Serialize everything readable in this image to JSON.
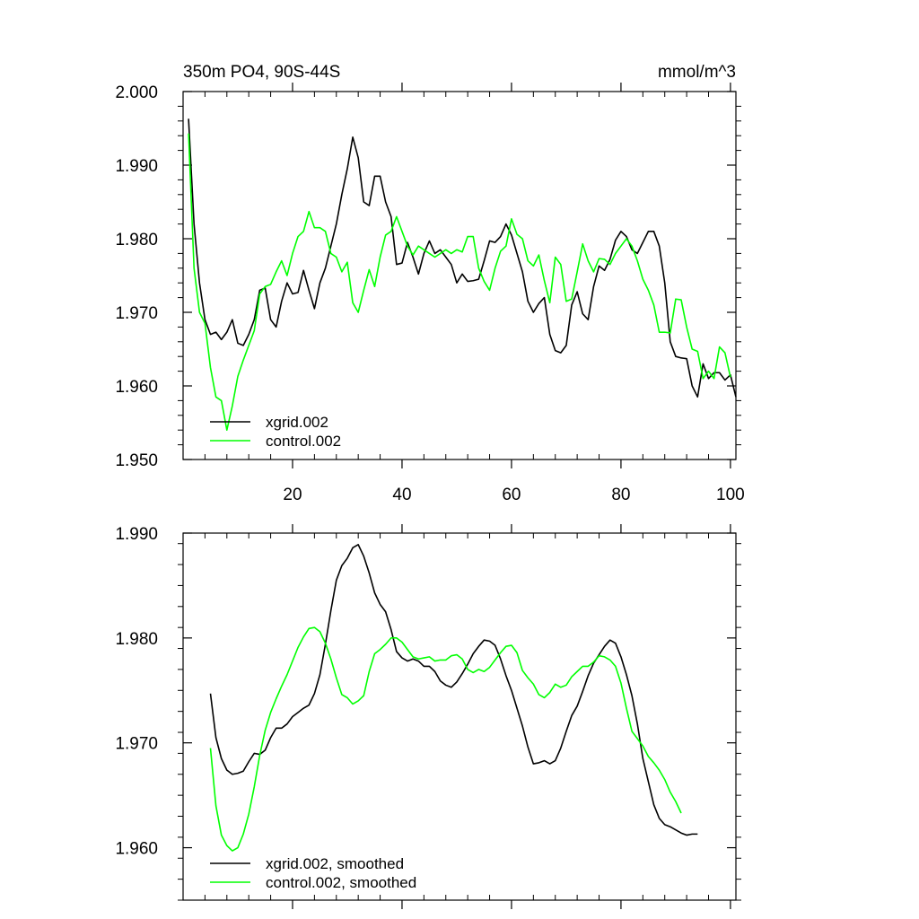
{
  "chart_data": [
    {
      "type": "line",
      "title": "350m PO4, 90S-44S",
      "units": "mmol/m^3",
      "xlim": [
        0,
        101
      ],
      "ylim": [
        1.95,
        2.0
      ],
      "x_ticks": [
        20,
        40,
        60,
        80,
        100
      ],
      "x_tick_labels": [
        "20",
        "40",
        "60",
        "80",
        "100"
      ],
      "y_ticks": [
        1.95,
        1.96,
        1.97,
        1.98,
        1.99,
        2.0
      ],
      "y_tick_labels": [
        "1.950",
        "1.960",
        "1.970",
        "1.980",
        "1.990",
        "2.000"
      ],
      "legend_position": "bottom-left",
      "series": [
        {
          "name": "xgrid.002",
          "color": "#000000",
          "x_start": 1,
          "values": [
            1.9963,
            1.982,
            1.974,
            1.969,
            1.967,
            1.9673,
            1.9663,
            1.9673,
            1.969,
            1.9658,
            1.9655,
            1.967,
            1.969,
            1.973,
            1.9733,
            1.969,
            1.968,
            1.9715,
            1.974,
            1.9725,
            1.9727,
            1.9757,
            1.973,
            1.9705,
            1.974,
            1.976,
            1.979,
            1.982,
            1.986,
            1.9895,
            1.9938,
            1.991,
            1.985,
            1.9845,
            1.9885,
            1.9885,
            1.985,
            1.983,
            1.9765,
            1.9767,
            1.9795,
            1.9775,
            1.9752,
            1.978,
            1.9797,
            1.978,
            1.9785,
            1.9775,
            1.9765,
            1.974,
            1.9752,
            1.9742,
            1.9743,
            1.9745,
            1.977,
            1.9797,
            1.9795,
            1.9803,
            1.982,
            1.9805,
            1.978,
            1.9755,
            1.9715,
            1.97,
            1.9712,
            1.972,
            1.967,
            1.9648,
            1.9645,
            1.9655,
            1.971,
            1.9728,
            1.9698,
            1.969,
            1.9735,
            1.9763,
            1.9757,
            1.9772,
            1.9798,
            1.981,
            1.9803,
            1.9785,
            1.978,
            1.9795,
            1.981,
            1.981,
            1.979,
            1.974,
            1.966,
            1.964,
            1.9638,
            1.9637,
            1.96,
            1.9585,
            1.963,
            1.961,
            1.9618,
            1.9618,
            1.9608,
            1.9615,
            1.9585
          ]
        },
        {
          "name": "control.002",
          "color": "#00ff00",
          "x_start": 1,
          "values": [
            1.9943,
            1.976,
            1.97,
            1.9685,
            1.9625,
            1.9585,
            1.958,
            1.954,
            1.9573,
            1.9613,
            1.9635,
            1.9655,
            1.9675,
            1.9725,
            1.9735,
            1.9738,
            1.9755,
            1.977,
            1.975,
            1.978,
            1.9803,
            1.981,
            1.9837,
            1.9815,
            1.9815,
            1.981,
            1.978,
            1.9775,
            1.9755,
            1.9768,
            1.9713,
            1.97,
            1.973,
            1.9758,
            1.9735,
            1.9775,
            1.9805,
            1.981,
            1.983,
            1.981,
            1.979,
            1.9778,
            1.979,
            1.9785,
            1.978,
            1.9775,
            1.978,
            1.9785,
            1.978,
            1.9785,
            1.9782,
            1.9803,
            1.9803,
            1.976,
            1.9742,
            1.973,
            1.976,
            1.9783,
            1.979,
            1.9827,
            1.9806,
            1.98,
            1.977,
            1.9763,
            1.9778,
            1.9743,
            1.9713,
            1.9775,
            1.9765,
            1.9715,
            1.9718,
            1.9755,
            1.9793,
            1.977,
            1.9755,
            1.9773,
            1.9772,
            1.9765,
            1.978,
            1.979,
            1.98,
            1.979,
            1.977,
            1.9745,
            1.973,
            1.971,
            1.9673,
            1.9673,
            1.9672,
            1.9718,
            1.9717,
            1.968,
            1.965,
            1.9647,
            1.961,
            1.962,
            1.961,
            1.9653,
            1.9645,
            1.9612
          ]
        }
      ]
    },
    {
      "type": "line",
      "title": "",
      "xlim": [
        0,
        101
      ],
      "ylim": [
        1.955,
        1.99
      ],
      "x_ticks": [
        20,
        40,
        60,
        80,
        100
      ],
      "y_ticks": [
        1.96,
        1.97,
        1.98,
        1.99
      ],
      "y_tick_labels": [
        "1.960",
        "1.970",
        "1.980",
        "1.990"
      ],
      "legend_position": "bottom-left",
      "series": [
        {
          "name": "xgrid.002, smoothed",
          "color": "#000000",
          "x_start": 5,
          "values": [
            1.9747,
            1.9705,
            1.9685,
            1.9674,
            1.967,
            1.9671,
            1.9673,
            1.9682,
            1.969,
            1.9689,
            1.9693,
            1.9705,
            1.9714,
            1.9714,
            1.9718,
            1.9725,
            1.9729,
            1.9733,
            1.9736,
            1.9747,
            1.9765,
            1.9794,
            1.9826,
            1.9855,
            1.9869,
            1.9876,
            1.9886,
            1.9889,
            1.9878,
            1.9862,
            1.9843,
            1.9832,
            1.9825,
            1.9808,
            1.9787,
            1.9781,
            1.9778,
            1.978,
            1.9778,
            1.9773,
            1.9773,
            1.9768,
            1.9759,
            1.9755,
            1.9753,
            1.9758,
            1.9766,
            1.9775,
            1.9785,
            1.9792,
            1.9798,
            1.9797,
            1.9793,
            1.978,
            1.9764,
            1.975,
            1.9733,
            1.9716,
            1.9696,
            1.968,
            1.9681,
            1.9683,
            1.968,
            1.9683,
            1.9695,
            1.9711,
            1.9726,
            1.9735,
            1.9749,
            1.9764,
            1.9776,
            1.9784,
            1.9792,
            1.9798,
            1.9795,
            1.9782,
            1.9765,
            1.9745,
            1.9718,
            1.9685,
            1.9663,
            1.9641,
            1.9628,
            1.9622,
            1.962,
            1.9617,
            1.9614,
            1.9612,
            1.9613,
            1.9613
          ]
        },
        {
          "name": "control.002, smoothed",
          "color": "#00ff00",
          "x_start": 5,
          "values": [
            1.9695,
            1.964,
            1.9612,
            1.9602,
            1.9597,
            1.96,
            1.9613,
            1.9632,
            1.9658,
            1.9688,
            1.9712,
            1.9729,
            1.9742,
            1.9754,
            1.9765,
            1.9778,
            1.9791,
            1.9801,
            1.9809,
            1.981,
            1.9806,
            1.9795,
            1.978,
            1.9762,
            1.9746,
            1.9743,
            1.9737,
            1.974,
            1.9745,
            1.9768,
            1.9785,
            1.9789,
            1.9794,
            1.98,
            1.98,
            1.9796,
            1.9789,
            1.9782,
            1.978,
            1.9781,
            1.9782,
            1.9778,
            1.9779,
            1.9779,
            1.9783,
            1.9784,
            1.978,
            1.977,
            1.9767,
            1.977,
            1.9768,
            1.9772,
            1.9779,
            1.9786,
            1.9792,
            1.9793,
            1.9786,
            1.9769,
            1.9762,
            1.9756,
            1.9746,
            1.9743,
            1.9748,
            1.9756,
            1.9753,
            1.9755,
            1.9763,
            1.9768,
            1.9773,
            1.9773,
            1.9777,
            1.9783,
            1.9782,
            1.9779,
            1.9773,
            1.9757,
            1.9733,
            1.9711,
            1.9704,
            1.9697,
            1.9687,
            1.9681,
            1.9674,
            1.9665,
            1.9653,
            1.9644,
            1.9633
          ]
        }
      ]
    }
  ]
}
